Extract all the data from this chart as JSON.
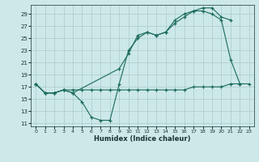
{
  "xlabel": "Humidex (Indice chaleur)",
  "background_color": "#cce8e8",
  "grid_color": "#aacccc",
  "line_color": "#1a6b5a",
  "xlim": [
    -0.5,
    23.5
  ],
  "ylim": [
    10.5,
    30.5
  ],
  "yticks": [
    11,
    13,
    15,
    17,
    19,
    21,
    23,
    25,
    27,
    29
  ],
  "xticks": [
    0,
    1,
    2,
    3,
    4,
    5,
    6,
    7,
    8,
    9,
    10,
    11,
    12,
    13,
    14,
    15,
    16,
    17,
    18,
    19,
    20,
    21,
    22,
    23
  ],
  "line1_x": [
    0,
    1,
    2,
    3,
    4,
    5,
    6,
    7,
    8,
    9,
    10,
    11,
    12,
    13,
    14,
    15,
    16,
    17,
    18,
    19,
    20,
    21,
    22
  ],
  "line1_y": [
    17.5,
    16.0,
    16.0,
    16.5,
    16.0,
    14.5,
    12.0,
    11.5,
    11.5,
    17.5,
    23.0,
    25.0,
    26.0,
    25.5,
    26.0,
    27.5,
    28.5,
    29.5,
    29.5,
    29.0,
    28.0,
    21.5,
    17.5
  ],
  "line2_x": [
    0,
    1,
    2,
    3,
    4,
    9,
    10,
    11,
    12,
    13,
    14,
    15,
    16,
    17,
    18,
    19,
    20,
    21,
    22,
    23
  ],
  "line2_y": [
    17.5,
    16.0,
    16.0,
    16.5,
    16.0,
    20.0,
    22.5,
    25.5,
    26.0,
    25.5,
    26.0,
    28.0,
    29.0,
    29.5,
    30.0,
    30.0,
    28.5,
    28.0,
    null,
    null
  ],
  "line3_x": [
    0,
    1,
    2,
    3,
    4,
    5,
    6,
    7,
    8,
    9,
    10,
    11,
    12,
    13,
    14,
    15,
    16,
    17,
    18,
    19,
    20,
    21,
    22,
    23
  ],
  "line3_y": [
    17.5,
    16.0,
    16.0,
    16.5,
    16.5,
    16.5,
    16.5,
    16.5,
    16.5,
    16.5,
    16.5,
    16.5,
    16.5,
    16.5,
    16.5,
    16.5,
    16.5,
    17.0,
    17.0,
    17.0,
    17.0,
    17.5,
    17.5,
    17.5
  ]
}
